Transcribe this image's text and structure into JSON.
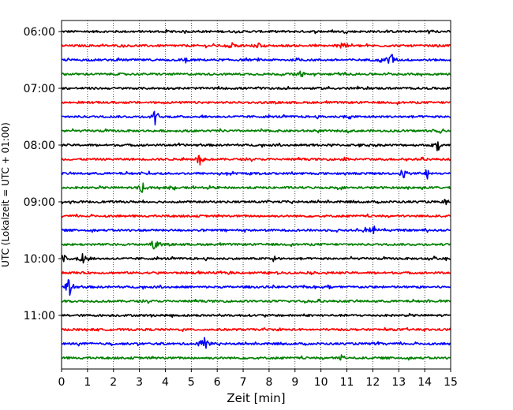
{
  "chart_data": {
    "type": "line",
    "title": "",
    "xlabel": "Zeit  [min]",
    "ylabel": "UTC (Lokalzeit = UTC + 01:00)",
    "xlim": [
      0,
      15
    ],
    "x_ticks": [
      0,
      1,
      2,
      3,
      4,
      5,
      6,
      7,
      8,
      9,
      10,
      11,
      12,
      13,
      14,
      15
    ],
    "y_tick_labels": [
      "06:00",
      "07:00",
      "08:00",
      "09:00",
      "10:00",
      "11:00"
    ],
    "grid": "vertical dotted",
    "trace_interval_min": 15,
    "trace_colors": [
      "#000000",
      "#ff0000",
      "#0000ff",
      "#008000"
    ],
    "traces": [
      {
        "time": "06:00",
        "color": "#000000",
        "events": [
          {
            "minute": 4.0,
            "amplitude": 0.25
          },
          {
            "minute": 14.2,
            "amplitude": 0.3
          }
        ]
      },
      {
        "time": "06:15",
        "color": "#ff0000",
        "events": [
          {
            "minute": 6.6,
            "amplitude": 0.5
          },
          {
            "minute": 7.6,
            "amplitude": 0.4
          },
          {
            "minute": 10.8,
            "amplitude": 0.9
          }
        ]
      },
      {
        "time": "06:30",
        "color": "#0000ff",
        "events": [
          {
            "minute": 4.8,
            "amplitude": 0.45
          },
          {
            "minute": 12.4,
            "amplitude": 0.5
          },
          {
            "minute": 12.7,
            "amplitude": 0.9
          }
        ]
      },
      {
        "time": "06:45",
        "color": "#008000",
        "events": [
          {
            "minute": 9.2,
            "amplitude": 0.6
          }
        ]
      },
      {
        "time": "07:00",
        "color": "#000000",
        "events": []
      },
      {
        "time": "07:15",
        "color": "#ff0000",
        "events": []
      },
      {
        "time": "07:30",
        "color": "#0000ff",
        "events": [
          {
            "minute": 3.6,
            "amplitude": 0.9
          },
          {
            "minute": 11.1,
            "amplitude": 0.3
          }
        ]
      },
      {
        "time": "07:45",
        "color": "#008000",
        "events": [
          {
            "minute": 14.6,
            "amplitude": 0.3
          }
        ]
      },
      {
        "time": "08:00",
        "color": "#000000",
        "events": [
          {
            "minute": 9.6,
            "amplitude": 0.3
          },
          {
            "minute": 14.5,
            "amplitude": 0.7
          }
        ]
      },
      {
        "time": "08:15",
        "color": "#ff0000",
        "events": [
          {
            "minute": 5.3,
            "amplitude": 0.9
          },
          {
            "minute": 10.9,
            "amplitude": 0.3
          }
        ]
      },
      {
        "time": "08:30",
        "color": "#0000ff",
        "events": [
          {
            "minute": 3.4,
            "amplitude": 0.3
          },
          {
            "minute": 13.2,
            "amplitude": 0.7
          },
          {
            "minute": 14.1,
            "amplitude": 0.6
          }
        ]
      },
      {
        "time": "08:45",
        "color": "#008000",
        "events": [
          {
            "minute": 3.1,
            "amplitude": 0.7
          },
          {
            "minute": 4.3,
            "amplitude": 0.4
          }
        ]
      },
      {
        "time": "09:00",
        "color": "#000000",
        "events": [
          {
            "minute": 14.8,
            "amplitude": 0.35
          }
        ]
      },
      {
        "time": "09:15",
        "color": "#ff0000",
        "events": []
      },
      {
        "time": "09:30",
        "color": "#0000ff",
        "events": [
          {
            "minute": 11.7,
            "amplitude": 0.5
          },
          {
            "minute": 12.0,
            "amplitude": 0.8
          }
        ]
      },
      {
        "time": "09:45",
        "color": "#008000",
        "events": [
          {
            "minute": 3.6,
            "amplitude": 0.9
          }
        ]
      },
      {
        "time": "10:00",
        "color": "#000000",
        "events": [
          {
            "minute": 0.1,
            "amplitude": 0.9
          },
          {
            "minute": 0.8,
            "amplitude": 0.7
          },
          {
            "minute": 8.2,
            "amplitude": 0.4
          },
          {
            "minute": 14.3,
            "amplitude": 0.3
          }
        ]
      },
      {
        "time": "10:15",
        "color": "#ff0000",
        "events": []
      },
      {
        "time": "10:30",
        "color": "#0000ff",
        "events": [
          {
            "minute": 0.3,
            "amplitude": 1.1
          },
          {
            "minute": 10.3,
            "amplitude": 0.3
          }
        ]
      },
      {
        "time": "10:45",
        "color": "#008000",
        "events": [
          {
            "minute": 9.5,
            "amplitude": 0.3
          }
        ]
      },
      {
        "time": "11:00",
        "color": "#000000",
        "events": []
      },
      {
        "time": "11:15",
        "color": "#ff0000",
        "events": []
      },
      {
        "time": "11:30",
        "color": "#0000ff",
        "events": [
          {
            "minute": 5.5,
            "amplitude": 1.1
          }
        ]
      },
      {
        "time": "11:45",
        "color": "#008000",
        "events": [
          {
            "minute": 10.8,
            "amplitude": 0.4
          }
        ]
      }
    ]
  }
}
